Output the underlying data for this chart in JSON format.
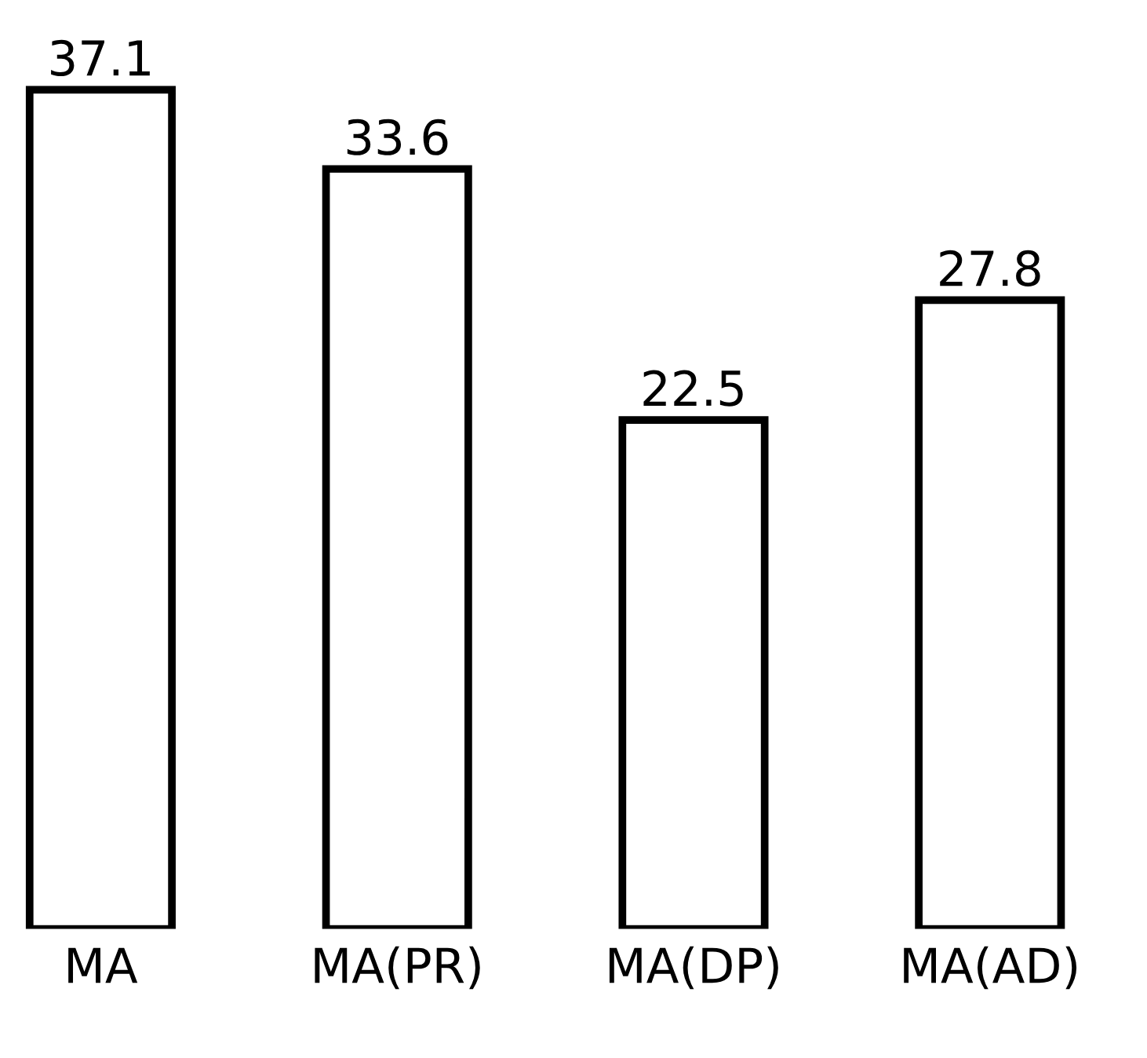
{
  "chart_data": {
    "type": "bar",
    "categories": [
      "MA",
      "MA(PR)",
      "MA(DP)",
      "MA(AD)"
    ],
    "values": [
      37.1,
      33.6,
      22.5,
      27.8
    ],
    "value_labels": [
      "37.1",
      "33.6",
      "22.5",
      "27.8"
    ],
    "color": "#ffffff",
    "grid": false,
    "legend": false
  }
}
